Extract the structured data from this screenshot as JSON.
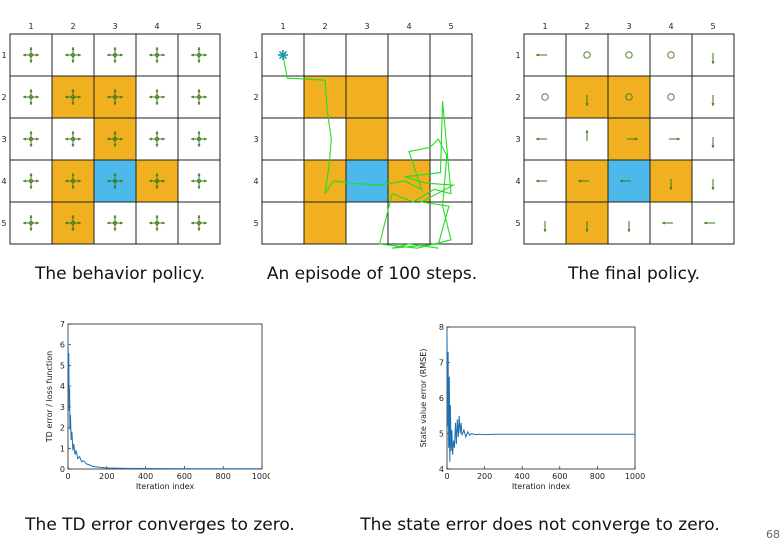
{
  "grid": {
    "rows": 5,
    "cols": 5,
    "col_labels": [
      "1",
      "2",
      "3",
      "4",
      "5"
    ],
    "row_labels": [
      "1",
      "2",
      "3",
      "4",
      "5"
    ],
    "forbidden": [
      [
        2,
        2
      ],
      [
        2,
        3
      ],
      [
        3,
        3
      ],
      [
        4,
        2
      ],
      [
        4,
        4
      ],
      [
        5,
        2
      ]
    ],
    "target": [
      [
        4,
        3
      ]
    ],
    "colors": {
      "forbidden": "#f0b020",
      "target": "#4db8ea",
      "line": "#222222",
      "arrow": "#3a7a1a",
      "trajectory": "#22dd22",
      "start_marker": "#1a9aaa"
    }
  },
  "panels": {
    "behavior": {
      "caption": "The behavior policy."
    },
    "episode": {
      "caption": "An episode of 100 steps."
    },
    "final": {
      "caption": "The final policy.",
      "actions": [
        [
          "left",
          "stay",
          "stay",
          "stay",
          "down"
        ],
        [
          "stay",
          "down",
          "stay",
          "stay",
          "down"
        ],
        [
          "left",
          "up",
          "right",
          "right",
          "down"
        ],
        [
          "left",
          "left",
          "left",
          "down",
          "down"
        ],
        [
          "down",
          "down",
          "down",
          "left",
          "left"
        ]
      ]
    }
  },
  "chart_data": [
    {
      "type": "line",
      "caption": "The TD error converges to zero.",
      "xlabel": "Iteration index",
      "ylabel": "TD error / loss function",
      "xlim": [
        0,
        1000
      ],
      "ylim": [
        0,
        7
      ],
      "xticks": [
        0,
        200,
        400,
        600,
        800,
        1000
      ],
      "yticks": [
        0,
        1,
        2,
        3,
        4,
        5,
        6,
        7
      ],
      "series": [
        {
          "color": "#1f6fb4",
          "x": [
            0,
            2,
            4,
            6,
            8,
            10,
            13,
            16,
            20,
            25,
            30,
            36,
            42,
            50,
            60,
            70,
            80,
            95,
            110,
            130,
            160,
            200,
            300,
            500,
            700,
            1000
          ],
          "y": [
            6.5,
            4.2,
            5.6,
            2.8,
            3.9,
            1.9,
            2.6,
            1.4,
            1.8,
            0.9,
            1.2,
            0.7,
            0.9,
            0.5,
            0.6,
            0.35,
            0.4,
            0.25,
            0.2,
            0.12,
            0.08,
            0.05,
            0.03,
            0.02,
            0.01,
            0.01
          ]
        }
      ]
    },
    {
      "type": "line",
      "caption": "The state error does not converge to zero.",
      "xlabel": "Iteration index",
      "ylabel": "State value error (RMSE)",
      "xlim": [
        0,
        1000
      ],
      "ylim": [
        4,
        8
      ],
      "xticks": [
        0,
        200,
        400,
        600,
        800,
        1000
      ],
      "yticks": [
        4,
        5,
        6,
        7,
        8
      ],
      "series": [
        {
          "color": "#1f6fb4",
          "x": [
            0,
            3,
            6,
            9,
            12,
            15,
            18,
            22,
            26,
            30,
            35,
            40,
            45,
            50,
            55,
            60,
            65,
            70,
            75,
            80,
            90,
            100,
            110,
            120,
            130,
            150,
            170,
            200,
            250,
            300,
            400,
            500,
            600,
            700,
            800,
            900,
            1000
          ],
          "y": [
            7.9,
            5.2,
            7.3,
            4.6,
            6.6,
            4.2,
            5.8,
            4.5,
            5.1,
            4.4,
            4.8,
            4.6,
            5.3,
            4.7,
            5.4,
            4.9,
            5.5,
            5.0,
            5.3,
            4.95,
            5.1,
            4.9,
            5.05,
            4.95,
            5.0,
            4.97,
            4.98,
            4.97,
            4.98,
            4.98,
            4.98,
            4.98,
            4.98,
            4.98,
            4.98,
            4.98,
            4.98
          ]
        }
      ]
    }
  ],
  "page_number": "68"
}
